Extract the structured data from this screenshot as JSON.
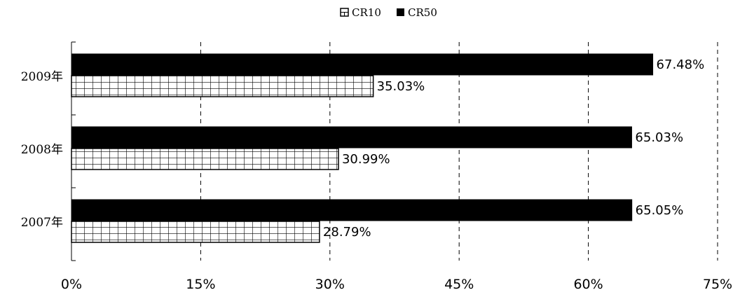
{
  "chart_data": {
    "type": "bar",
    "orientation": "horizontal",
    "categories": [
      "2007年",
      "2008年",
      "2009年"
    ],
    "series": [
      {
        "name": "CR50",
        "values": [
          65.05,
          65.03,
          67.48
        ],
        "labels": [
          "65.05%",
          "65.03%",
          "67.48%"
        ],
        "fill": "#000000",
        "pattern": "solid"
      },
      {
        "name": "CR10",
        "values": [
          28.79,
          30.99,
          35.03
        ],
        "labels": [
          "28.79%",
          "30.99%",
          "35.03%"
        ],
        "fill": "#ffffff",
        "pattern": "grid"
      }
    ],
    "legend_order": [
      "CR10",
      "CR50"
    ],
    "x_ticks": [
      "0%",
      "15%",
      "30%",
      "45%",
      "60%",
      "75%"
    ],
    "xlim": [
      0,
      75
    ],
    "grid": "vertical-dashed",
    "legend_position": "top-center"
  }
}
